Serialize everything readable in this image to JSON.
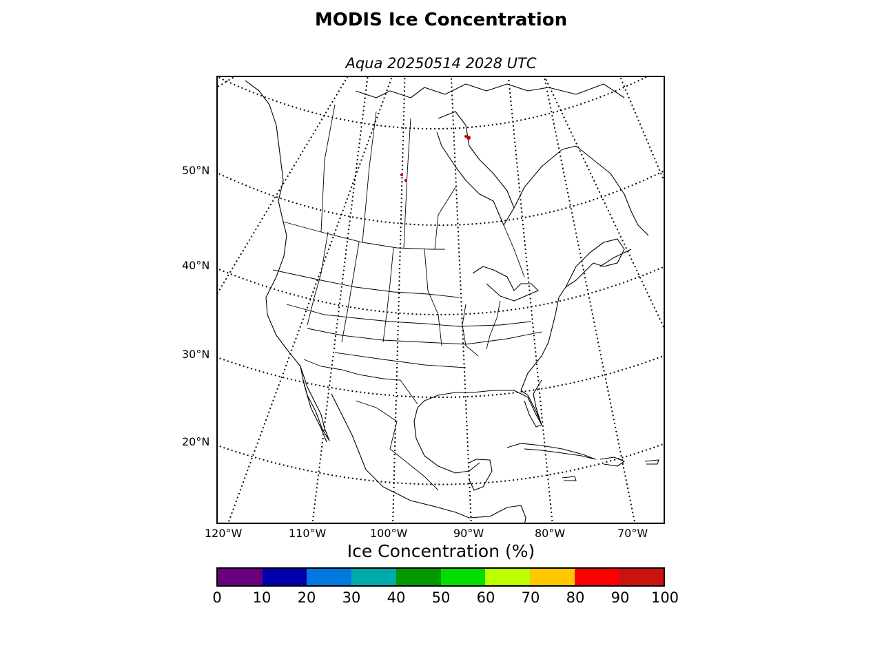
{
  "title": "MODIS Ice Concentration",
  "subtitle": "Aqua 20250514 2028 UTC",
  "map": {
    "projection": "lambert-conformal",
    "latitude_labels": [
      "50°N",
      "40°N",
      "30°N",
      "20°N"
    ],
    "longitude_labels": [
      "120°W",
      "110°W",
      "100°W",
      "90°W",
      "80°W",
      "70°W"
    ],
    "graticule_style": "dotted",
    "coastline_color": "#000000",
    "ice_marker_color": "#cc0000"
  },
  "colorbar": {
    "label": "Ice Concentration (%)",
    "ticks": [
      "0",
      "10",
      "20",
      "30",
      "40",
      "50",
      "60",
      "70",
      "80",
      "90",
      "100"
    ],
    "colors": [
      "#6a0080",
      "#0000aa",
      "#0078e0",
      "#00aaaa",
      "#009900",
      "#00dd00",
      "#bbff00",
      "#ffc800",
      "#ff0000",
      "#cc1111"
    ]
  }
}
